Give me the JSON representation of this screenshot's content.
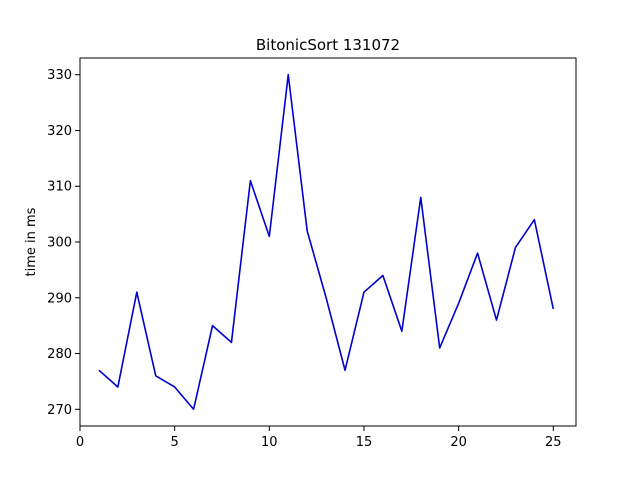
{
  "chart_data": {
    "type": "line",
    "title": "BitonicSort 131072",
    "xlabel": "",
    "ylabel": "time in ms",
    "xlim": [
      0,
      26.2
    ],
    "ylim": [
      267,
      333
    ],
    "xticks": [
      0,
      5,
      10,
      15,
      20,
      25
    ],
    "yticks": [
      270,
      280,
      290,
      300,
      310,
      320,
      330
    ],
    "grid": false,
    "series": [
      {
        "color": "#0000cc",
        "x": [
          1,
          2,
          3,
          4,
          5,
          6,
          7,
          8,
          9,
          10,
          11,
          12,
          13,
          14,
          15,
          16,
          17,
          18,
          19,
          20,
          21,
          22,
          23,
          24,
          25
        ],
        "y": [
          277,
          274,
          291,
          276,
          274,
          270,
          285,
          282,
          311,
          301,
          330,
          302,
          290,
          277,
          291,
          294,
          284,
          308,
          281,
          289,
          298,
          286,
          299,
          304,
          288
        ]
      }
    ]
  }
}
